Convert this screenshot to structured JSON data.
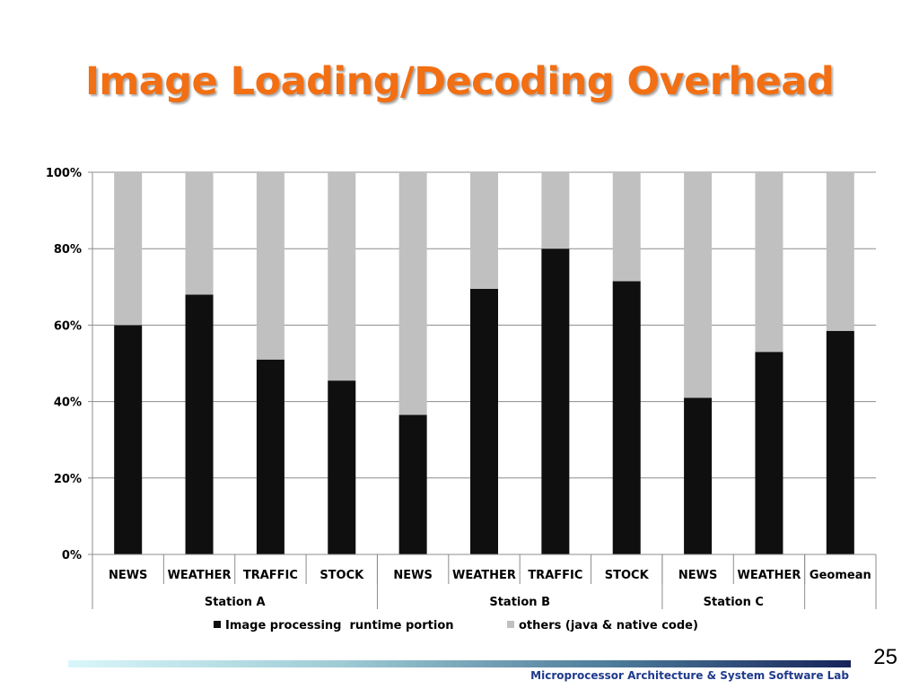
{
  "slide": {
    "title": "Image Loading/Decoding Overhead",
    "page_number": "25",
    "footer": "Microprocessor Architecture & System Software Lab"
  },
  "colors": {
    "title": "#f26f13",
    "series_image": "#0f0f0f",
    "series_others": "#c0c0c0",
    "gridline": "#8c8c8c",
    "footer_text": "#1f3a8c"
  },
  "chart_data": {
    "type": "bar",
    "stacked": true,
    "percent_axis": true,
    "categories": [
      "NEWS",
      "WEATHER",
      "TRAFFIC",
      "STOCK",
      "NEWS",
      "WEATHER",
      "TRAFFIC",
      "STOCK",
      "NEWS",
      "WEATHER",
      "Geomean"
    ],
    "groups": [
      {
        "label": "Station A",
        "span": 4
      },
      {
        "label": "Station B",
        "span": 4
      },
      {
        "label": "Station C",
        "span": 2
      },
      {
        "label": "",
        "span": 1
      }
    ],
    "series": [
      {
        "name": "Image processing  runtime portion",
        "values": [
          60,
          68,
          51,
          45.5,
          36.5,
          69.5,
          80,
          71.5,
          41,
          53,
          58.5
        ]
      },
      {
        "name": "others (java & native code)",
        "values": [
          40,
          32,
          49,
          54.5,
          63.5,
          30.5,
          20,
          28.5,
          59,
          47,
          41.5
        ]
      }
    ],
    "yticks": [
      "0%",
      "20%",
      "40%",
      "60%",
      "80%",
      "100%"
    ],
    "ylim": [
      0,
      100
    ],
    "grid": true,
    "legend": "bottom"
  }
}
